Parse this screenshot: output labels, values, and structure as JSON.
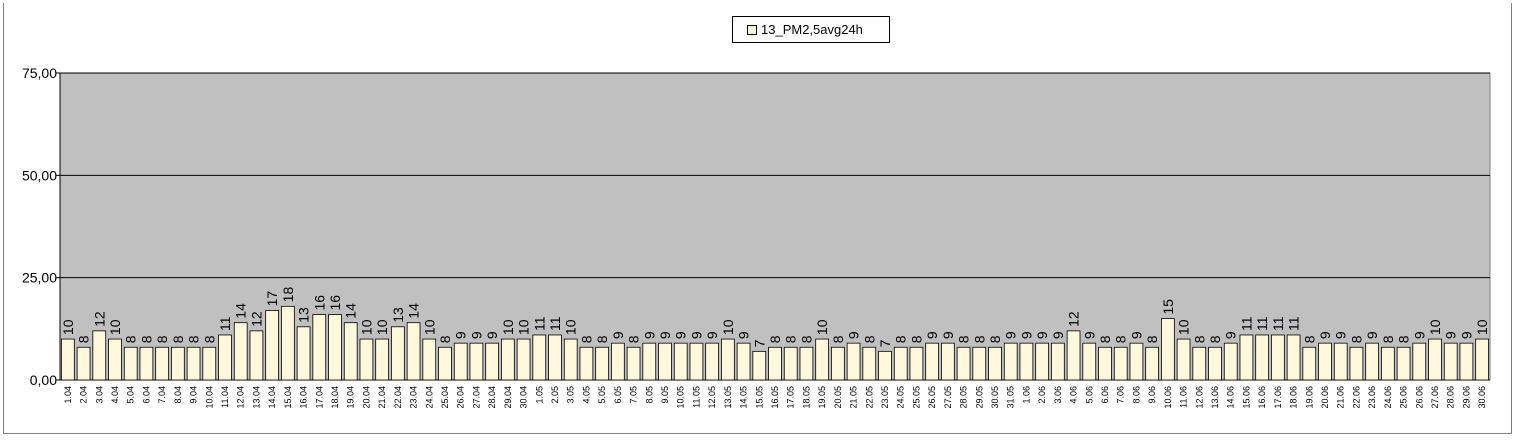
{
  "chart_data": {
    "type": "bar",
    "legend": "13_PM2,5avg24h",
    "legend_position": "top-center",
    "grid": true,
    "ylim": [
      0,
      75
    ],
    "yticks": [
      "0,00",
      "25,00",
      "50,00",
      "75,00"
    ],
    "ytick_values": [
      0,
      25,
      50,
      75
    ],
    "colors": {
      "bar": "#FFF8DC",
      "plot_bg": "#C0C0C0",
      "bar_border": "#000000"
    },
    "categories": [
      "1.04",
      "2.04",
      "3.04",
      "4.04",
      "5.04",
      "6.04",
      "7.04",
      "8.04",
      "9.04",
      "10.04",
      "11.04",
      "12.04",
      "13.04",
      "14.04",
      "15.04",
      "16.04",
      "17.04",
      "18.04",
      "19.04",
      "20.04",
      "21.04",
      "22.04",
      "23.04",
      "24.04",
      "25.04",
      "26.04",
      "27.04",
      "28.04",
      "29.04",
      "30.04",
      "1.05",
      "2.05",
      "3.05",
      "4.05",
      "5.05",
      "6.05",
      "7.05",
      "8.05",
      "9.05",
      "10.05",
      "11.05",
      "12.05",
      "13.05",
      "14.05",
      "15.05",
      "16.05",
      "17.05",
      "18.05",
      "19.05",
      "20.05",
      "21.05",
      "22.05",
      "23.05",
      "24.05",
      "25.05",
      "26.05",
      "27.05",
      "28.05",
      "29.05",
      "30.05",
      "31.05",
      "1.06",
      "2.06",
      "3.06",
      "4.06",
      "5.06",
      "6.06",
      "7.06",
      "8.06",
      "9.06",
      "10.06",
      "11.06",
      "12.06",
      "13.06",
      "14.06",
      "15.06",
      "16.06",
      "17.06",
      "18.06",
      "19.06",
      "20.06",
      "21.06",
      "22.06",
      "23.06",
      "24.06",
      "25.06",
      "26.06",
      "27.06",
      "28.06",
      "29.06",
      "30.06"
    ],
    "values": [
      10,
      8,
      12,
      10,
      8,
      8,
      8,
      8,
      8,
      8,
      11,
      14,
      12,
      17,
      18,
      13,
      16,
      16,
      14,
      10,
      10,
      13,
      14,
      10,
      8,
      9,
      9,
      9,
      10,
      10,
      11,
      11,
      10,
      8,
      8,
      9,
      8,
      9,
      9,
      9,
      9,
      9,
      10,
      9,
      7,
      8,
      8,
      8,
      10,
      8,
      9,
      8,
      7,
      8,
      8,
      9,
      9,
      8,
      8,
      8,
      9,
      9,
      9,
      9,
      12,
      9,
      8,
      8,
      9,
      8,
      15,
      10,
      8,
      8,
      9,
      11,
      11,
      11,
      11,
      8,
      9,
      9,
      8,
      9,
      8,
      8,
      9,
      10,
      9,
      9,
      10
    ],
    "labels": [
      "10",
      "8",
      "12",
      "10",
      "8",
      "8",
      "8",
      "8",
      "8",
      "8",
      "11",
      "14",
      "12",
      "17",
      "18",
      "13",
      "16",
      "16",
      "14",
      "10",
      "10",
      "13",
      "14",
      "10",
      "8",
      "9",
      "9",
      "9",
      "10",
      "10",
      "11",
      "11",
      "10",
      "8",
      "8",
      "9",
      "8",
      "9",
      "9",
      "9",
      "9",
      "9",
      "10",
      "9",
      "7",
      "8",
      "8",
      "8",
      "10",
      "8",
      "9",
      "8",
      "7",
      "8",
      "8",
      "9",
      "9",
      "8",
      "8",
      "8",
      "9",
      "9",
      "9",
      "9",
      "12",
      "9",
      "8",
      "8",
      "9",
      "8",
      "15",
      "10",
      "8",
      "8",
      "9",
      "11",
      "11",
      "11",
      "11",
      "8",
      "9",
      "9",
      "8",
      "9",
      "8",
      "8",
      "9",
      "10",
      "9",
      "9",
      "10"
    ]
  }
}
